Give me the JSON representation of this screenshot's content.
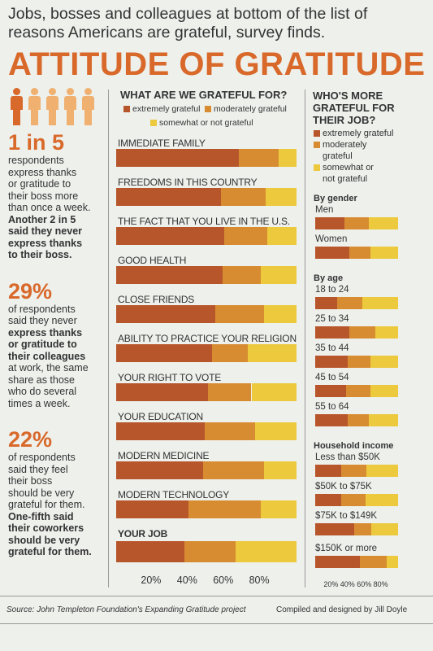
{
  "headline": "Jobs, bosses and colleagues at bottom of the list of reasons Americans are grateful, survey finds.",
  "title": "ATTITUDE OF GRATITUDE",
  "colors": {
    "extremely": "#b8562b",
    "moderately": "#d88c32",
    "somewhat": "#ecc93d",
    "accent": "#d9692a"
  },
  "left": {
    "stats": [
      {
        "num": "1 in 5",
        "lines": [
          {
            "t": "respondents",
            "b": false
          },
          {
            "t": "express thanks",
            "b": false
          },
          {
            "t": "or gratitude to",
            "b": false
          },
          {
            "t": "their boss more",
            "b": false
          },
          {
            "t": "than once a week.",
            "b": false
          },
          {
            "t": "Another 2 in 5",
            "b": true
          },
          {
            "t": "said they never",
            "b": true
          },
          {
            "t": "express thanks",
            "b": true
          },
          {
            "t": "to their boss.",
            "b": true
          }
        ]
      },
      {
        "num": "29%",
        "lines": [
          {
            "t": "of respondents",
            "b": false
          },
          {
            "t": "said they never",
            "b": false,
            "bpart": "never"
          },
          {
            "t": "express thanks",
            "b": true
          },
          {
            "t": "or gratitude to",
            "b": true
          },
          {
            "t": "their colleagues",
            "b": true
          },
          {
            "t": "at work, the same",
            "b": false
          },
          {
            "t": "share as those",
            "b": false
          },
          {
            "t": "who do several",
            "b": false
          },
          {
            "t": "times a week.",
            "b": false
          }
        ]
      },
      {
        "num": "22%",
        "lines": [
          {
            "t": "of respondents",
            "b": false
          },
          {
            "t": "said they feel",
            "b": false
          },
          {
            "t": "their boss",
            "b": false
          },
          {
            "t": "should be very",
            "b": false
          },
          {
            "t": "grateful for them.",
            "b": false
          },
          {
            "t": "One-fifth said",
            "b": true
          },
          {
            "t": "their coworkers",
            "b": true
          },
          {
            "t": "should be very",
            "b": true
          },
          {
            "t": "grateful for them.",
            "b": true
          }
        ]
      }
    ]
  },
  "chart_data": [
    {
      "type": "bar",
      "orientation": "horizontal",
      "stacked": true,
      "title": "WHAT ARE WE GRATEFUL FOR?",
      "legend": [
        "extremely grateful",
        "moderately grateful",
        "somewhat or not grateful"
      ],
      "categories": [
        "IMMEDIATE FAMILY",
        "FREEDOMS IN THIS COUNTRY",
        "THE FACT THAT YOU LIVE IN THE U.S.",
        "GOOD HEALTH",
        "CLOSE FRIENDS",
        "ABILITY TO PRACTICE YOUR RELIGION",
        "YOUR RIGHT TO VOTE",
        "YOUR EDUCATION",
        "MODERN MEDICINE",
        "MODERN TECHNOLOGY",
        "YOUR JOB"
      ],
      "series": [
        {
          "name": "extremely grateful",
          "values": [
            68,
            58,
            60,
            59,
            55,
            53,
            51,
            49,
            48,
            40,
            38
          ]
        },
        {
          "name": "moderately grateful",
          "values": [
            22,
            25,
            24,
            21,
            27,
            20,
            24,
            28,
            34,
            40,
            28
          ]
        },
        {
          "name": "somewhat or not grateful",
          "values": [
            10,
            17,
            16,
            20,
            18,
            27,
            25,
            23,
            18,
            20,
            34
          ]
        }
      ],
      "xticks": [
        "20%",
        "40%",
        "60%",
        "80%"
      ],
      "xlim": [
        0,
        100
      ]
    },
    {
      "type": "bar",
      "orientation": "horizontal",
      "stacked": true,
      "title": "WHO'S MORE GRATEFUL FOR THEIR JOB?",
      "legend": [
        "extremely grateful",
        "moderately grateful",
        "somewhat or not grateful"
      ],
      "groups": [
        {
          "name": "By gender",
          "items": [
            {
              "label": "Men",
              "values": [
                35,
                30,
                35
              ]
            },
            {
              "label": "Women",
              "values": [
                41,
                26,
                33
              ]
            }
          ]
        },
        {
          "name": "By age",
          "items": [
            {
              "label": "18 to 24",
              "values": [
                26,
                31,
                43
              ]
            },
            {
              "label": "25 to 34",
              "values": [
                41,
                32,
                27
              ]
            },
            {
              "label": "35 to 44",
              "values": [
                39,
                28,
                33
              ]
            },
            {
              "label": "45 to 54",
              "values": [
                37,
                30,
                33
              ]
            },
            {
              "label": "55 to 64",
              "values": [
                39,
                26,
                35
              ]
            }
          ]
        },
        {
          "name": "Household income",
          "items": [
            {
              "label": "Less than $50K",
              "values": [
                31,
                31,
                38
              ]
            },
            {
              "label": "$50K to $75K",
              "values": [
                31,
                30,
                39
              ]
            },
            {
              "label": "$75K to $149K",
              "values": [
                47,
                21,
                32
              ]
            },
            {
              "label": "$150K or more",
              "values": [
                54,
                32,
                14
              ]
            }
          ]
        }
      ],
      "xticks": [
        "20%",
        "40%",
        "60%",
        "80%"
      ],
      "xlim": [
        0,
        100
      ]
    }
  ],
  "right_legend": [
    "extremely grateful",
    "moderately",
    "grateful",
    "somewhat or",
    "not grateful"
  ],
  "source": "Source: John Templeton Foundation's Expanding Gratitude project",
  "credit": "Compiled and designed by Jill Doyle"
}
